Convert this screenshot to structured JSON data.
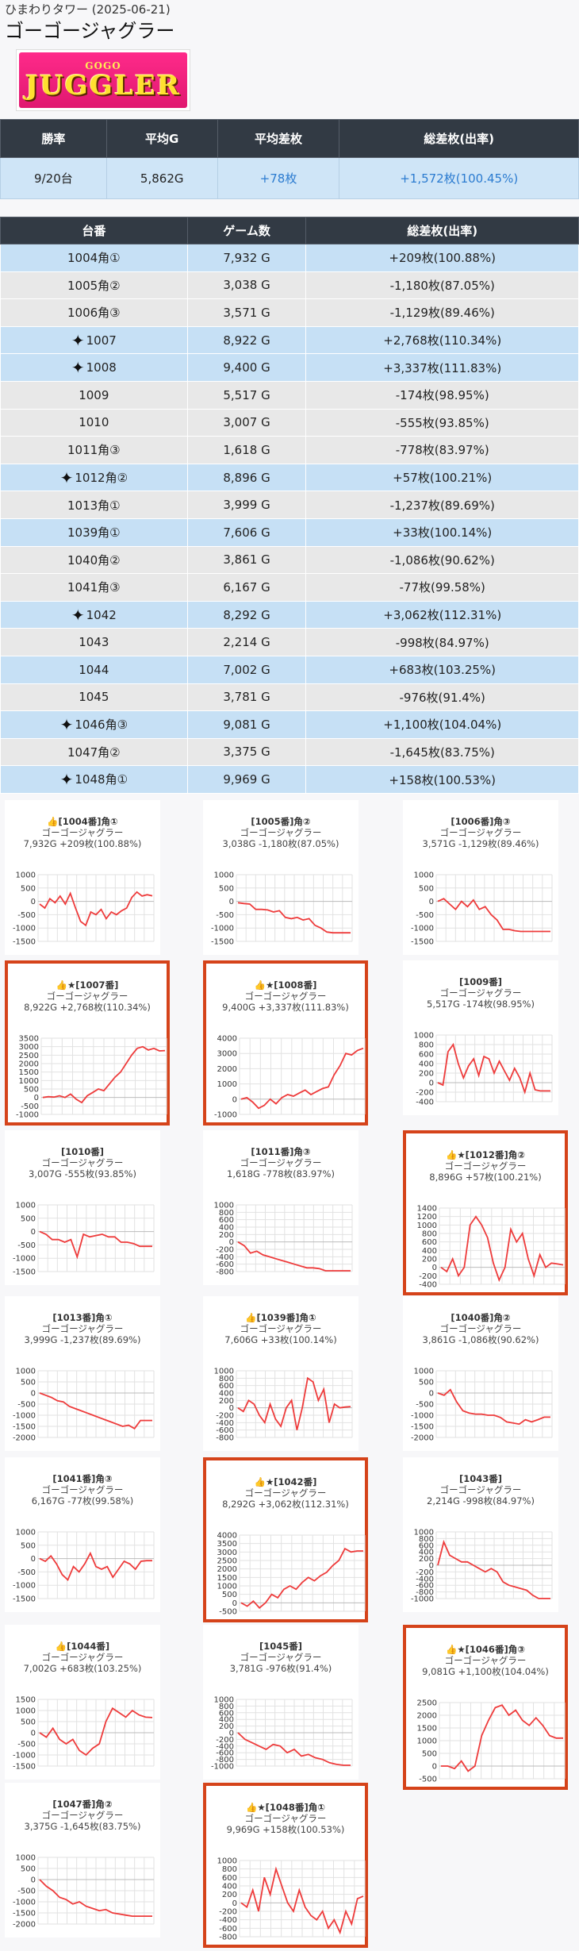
{
  "header": {
    "store": "ひまわりタワー",
    "date": "(2025-06-21)",
    "title": "ゴーゴージャグラー"
  },
  "logo": {
    "top_text": "GOGO",
    "main_text": "JUGGLER"
  },
  "summary": {
    "headers": [
      "勝率",
      "平均G",
      "平均差枚",
      "総差枚(出率)"
    ],
    "values": [
      "9/20台",
      "5,862G",
      "+78枚",
      "+1,572枚(100.45%)"
    ]
  },
  "table": {
    "headers": [
      "台番",
      "ゲーム数",
      "総差枚(出率)"
    ],
    "rows": [
      {
        "id": "1004角①",
        "games": "7,932 G",
        "diff": "+209枚(100.88%)",
        "hl": true,
        "star": false
      },
      {
        "id": "1005角②",
        "games": "3,038 G",
        "diff": "-1,180枚(87.05%)",
        "hl": false,
        "star": false
      },
      {
        "id": "1006角③",
        "games": "3,571 G",
        "diff": "-1,129枚(89.46%)",
        "hl": false,
        "star": false
      },
      {
        "id": "1007",
        "games": "8,922 G",
        "diff": "+2,768枚(110.34%)",
        "hl": true,
        "star": true
      },
      {
        "id": "1008",
        "games": "9,400 G",
        "diff": "+3,337枚(111.83%)",
        "hl": true,
        "star": true
      },
      {
        "id": "1009",
        "games": "5,517 G",
        "diff": "-174枚(98.95%)",
        "hl": false,
        "star": false
      },
      {
        "id": "1010",
        "games": "3,007 G",
        "diff": "-555枚(93.85%)",
        "hl": false,
        "star": false
      },
      {
        "id": "1011角③",
        "games": "1,618 G",
        "diff": "-778枚(83.97%)",
        "hl": false,
        "star": false
      },
      {
        "id": "1012角②",
        "games": "8,896 G",
        "diff": "+57枚(100.21%)",
        "hl": true,
        "star": true
      },
      {
        "id": "1013角①",
        "games": "3,999 G",
        "diff": "-1,237枚(89.69%)",
        "hl": false,
        "star": false
      },
      {
        "id": "1039角①",
        "games": "7,606 G",
        "diff": "+33枚(100.14%)",
        "hl": true,
        "star": false
      },
      {
        "id": "1040角②",
        "games": "3,861 G",
        "diff": "-1,086枚(90.62%)",
        "hl": false,
        "star": false
      },
      {
        "id": "1041角③",
        "games": "6,167 G",
        "diff": "-77枚(99.58%)",
        "hl": false,
        "star": false
      },
      {
        "id": "1042",
        "games": "8,292 G",
        "diff": "+3,062枚(112.31%)",
        "hl": true,
        "star": true
      },
      {
        "id": "1043",
        "games": "2,214 G",
        "diff": "-998枚(84.97%)",
        "hl": false,
        "star": false
      },
      {
        "id": "1044",
        "games": "7,002 G",
        "diff": "+683枚(103.25%)",
        "hl": true,
        "star": false
      },
      {
        "id": "1045",
        "games": "3,781 G",
        "diff": "-976枚(91.4%)",
        "hl": false,
        "star": false
      },
      {
        "id": "1046角③",
        "games": "9,081 G",
        "diff": "+1,100枚(104.04%)",
        "hl": true,
        "star": true
      },
      {
        "id": "1047角②",
        "games": "3,375 G",
        "diff": "-1,645枚(83.75%)",
        "hl": false,
        "star": false
      },
      {
        "id": "1048角①",
        "games": "9,969 G",
        "diff": "+158枚(100.53%)",
        "hl": true,
        "star": true
      }
    ]
  },
  "charts": [
    {
      "title": "👍[1004番]角①",
      "sub": "ゴーゴージャグラー",
      "stat": "7,932G +209枚(100.88%)",
      "boxed": false,
      "yticks": [
        1000,
        500,
        0,
        -500,
        -1000,
        -1500
      ],
      "ylim": [
        -1500,
        1000
      ],
      "values": [
        -100,
        -250,
        100,
        -50,
        200,
        -100,
        300,
        -250,
        -750,
        -900,
        -400,
        -500,
        -300,
        -650,
        -400,
        -500,
        -350,
        -250,
        150,
        350,
        200,
        250,
        209
      ]
    },
    {
      "title": "[1005番]角②",
      "sub": "ゴーゴージャグラー",
      "stat": "3,038G -1,180枚(87.05%)",
      "boxed": false,
      "yticks": [
        1000,
        500,
        0,
        -500,
        -1000,
        -1500
      ],
      "ylim": [
        -1500,
        1000
      ],
      "values": [
        -50,
        -80,
        -100,
        -300,
        -300,
        -320,
        -400,
        -350,
        -600,
        -650,
        -600,
        -700,
        -650,
        -900,
        -1000,
        -1150,
        -1180,
        -1180,
        -1180,
        -1180
      ]
    },
    {
      "title": "[1006番]角③",
      "sub": "ゴーゴージャグラー",
      "stat": "3,571G -1,129枚(89.46%)",
      "boxed": false,
      "yticks": [
        1000,
        500,
        0,
        -500,
        -1000,
        -1500
      ],
      "ylim": [
        -1500,
        1000
      ],
      "values": [
        0,
        100,
        -100,
        -300,
        0,
        -200,
        50,
        -300,
        -200,
        -500,
        -700,
        -1050,
        -1050,
        -1100,
        -1129,
        -1129,
        -1129,
        -1129,
        -1129,
        -1129
      ]
    },
    {
      "title": "👍★[1007番]",
      "sub": "ゴーゴージャグラー",
      "stat": "8,922G +2,768枚(110.34%)",
      "boxed": true,
      "yticks": [
        3500,
        3000,
        2500,
        2000,
        1500,
        1000,
        500,
        0,
        -500,
        -1000
      ],
      "ylim": [
        -1000,
        3500
      ],
      "values": [
        0,
        50,
        20,
        100,
        0,
        200,
        -100,
        -300,
        100,
        300,
        500,
        400,
        800,
        1200,
        1500,
        2000,
        2500,
        2900,
        3000,
        2800,
        2900,
        2750,
        2768
      ]
    },
    {
      "title": "👍★[1008番]",
      "sub": "ゴーゴージャグラー",
      "stat": "9,400G +3,337枚(111.83%)",
      "boxed": true,
      "yticks": [
        4000,
        3000,
        2000,
        1000,
        0,
        -1000
      ],
      "ylim": [
        -1000,
        4000
      ],
      "values": [
        0,
        100,
        -200,
        -600,
        -400,
        0,
        -300,
        100,
        300,
        200,
        400,
        600,
        300,
        500,
        700,
        800,
        1600,
        2200,
        3000,
        2900,
        3200,
        3337
      ]
    },
    {
      "title": "[1009番]",
      "sub": "ゴーゴージャグラー",
      "stat": "5,517G -174枚(98.95%)",
      "boxed": false,
      "yticks": [
        1000,
        800,
        600,
        400,
        200,
        0,
        -200,
        -400
      ],
      "ylim": [
        -400,
        1000
      ],
      "values": [
        0,
        -50,
        650,
        800,
        400,
        100,
        350,
        500,
        150,
        550,
        500,
        200,
        450,
        250,
        50,
        300,
        100,
        -200,
        200,
        -150,
        -174,
        -174,
        -174
      ]
    },
    {
      "title": "[1010番]",
      "sub": "ゴーゴージャグラー",
      "stat": "3,007G -555枚(93.85%)",
      "boxed": false,
      "yticks": [
        1000,
        500,
        0,
        -500,
        -1000,
        -1500
      ],
      "ylim": [
        -1500,
        1000
      ],
      "values": [
        0,
        -100,
        -300,
        -300,
        -400,
        -300,
        -950,
        -100,
        -200,
        -150,
        -100,
        -200,
        -200,
        -400,
        -400,
        -450,
        -555,
        -555,
        -555
      ]
    },
    {
      "title": "[1011番]角③",
      "sub": "ゴーゴージャグラー",
      "stat": "1,618G -778枚(83.97%)",
      "boxed": false,
      "yticks": [
        1000,
        800,
        600,
        400,
        200,
        0,
        -200,
        -400,
        -600,
        -800
      ],
      "ylim": [
        -800,
        1000
      ],
      "values": [
        0,
        -100,
        -300,
        -250,
        -350,
        -400,
        -450,
        -500,
        -550,
        -600,
        -650,
        -700,
        -700,
        -720,
        -778,
        -778,
        -778,
        -778,
        -778
      ]
    },
    {
      "title": "👍★[1012番]角②",
      "sub": "ゴーゴージャグラー",
      "stat": "8,896G +57枚(100.21%)",
      "boxed": true,
      "yticks": [
        1400,
        1200,
        1000,
        800,
        600,
        400,
        200,
        0,
        -200,
        -400
      ],
      "ylim": [
        -400,
        1400
      ],
      "values": [
        0,
        -100,
        200,
        -200,
        0,
        1000,
        1200,
        1000,
        700,
        100,
        -300,
        0,
        900,
        600,
        800,
        200,
        -200,
        300,
        0,
        100,
        80,
        57
      ]
    },
    {
      "title": "[1013番]角①",
      "sub": "ゴーゴージャグラー",
      "stat": "3,999G -1,237枚(89.69%)",
      "boxed": false,
      "yticks": [
        1000,
        500,
        0,
        -500,
        -1000,
        -1500,
        -2000
      ],
      "ylim": [
        -2000,
        1000
      ],
      "values": [
        0,
        -100,
        -200,
        -350,
        -400,
        -600,
        -700,
        -800,
        -900,
        -1000,
        -1100,
        -1200,
        -1300,
        -1400,
        -1500,
        -1450,
        -1600,
        -1237,
        -1237,
        -1237
      ]
    },
    {
      "title": "👍[1039番]角①",
      "sub": "ゴーゴージャグラー",
      "stat": "7,606G +33枚(100.14%)",
      "boxed": false,
      "yticks": [
        1000,
        800,
        600,
        400,
        200,
        0,
        -200,
        -400,
        -600,
        -800
      ],
      "ylim": [
        -800,
        1000
      ],
      "values": [
        0,
        -100,
        200,
        100,
        -200,
        -400,
        100,
        -300,
        -500,
        0,
        200,
        -600,
        0,
        800,
        700,
        200,
        500,
        -400,
        100,
        0,
        20,
        33
      ]
    },
    {
      "title": "[1040番]角②",
      "sub": "ゴーゴージャグラー",
      "stat": "3,861G -1,086枚(90.62%)",
      "boxed": false,
      "yticks": [
        1000,
        500,
        0,
        -500,
        -1000,
        -1500,
        -2000
      ],
      "ylim": [
        -2000,
        1000
      ],
      "values": [
        0,
        -100,
        150,
        -400,
        -800,
        -900,
        -950,
        -950,
        -1000,
        -1000,
        -1100,
        -1300,
        -1350,
        -1400,
        -1200,
        -1300,
        -1200,
        -1086,
        -1086
      ]
    },
    {
      "title": "[1041番]角③",
      "sub": "ゴーゴージャグラー",
      "stat": "6,167G -77枚(99.58%)",
      "boxed": false,
      "yticks": [
        1000,
        500,
        0,
        -500,
        -1000,
        -1500
      ],
      "ylim": [
        -1500,
        1000
      ],
      "values": [
        0,
        -100,
        100,
        -200,
        -600,
        -800,
        -300,
        -500,
        -200,
        200,
        -300,
        -400,
        -300,
        -700,
        -400,
        -100,
        -200,
        -400,
        -100,
        -77,
        -77
      ]
    },
    {
      "title": "👍★[1042番]",
      "sub": "ゴーゴージャグラー",
      "stat": "8,292G +3,062枚(112.31%)",
      "boxed": true,
      "yticks": [
        4000,
        3500,
        3000,
        2500,
        2000,
        1500,
        1000,
        500,
        0,
        -500
      ],
      "ylim": [
        -500,
        4000
      ],
      "values": [
        0,
        -200,
        100,
        -300,
        0,
        500,
        300,
        800,
        1000,
        800,
        1200,
        1500,
        1300,
        1600,
        1800,
        2200,
        2500,
        3200,
        3000,
        3062,
        3062
      ]
    },
    {
      "title": "[1043番]",
      "sub": "ゴーゴージャグラー",
      "stat": "2,214G -998枚(84.97%)",
      "boxed": false,
      "yticks": [
        1000,
        800,
        600,
        400,
        200,
        0,
        -200,
        -400,
        -600,
        -800,
        -1000
      ],
      "ylim": [
        -1000,
        1000
      ],
      "values": [
        0,
        700,
        300,
        200,
        100,
        100,
        0,
        -100,
        -200,
        -100,
        -200,
        -500,
        -600,
        -650,
        -700,
        -750,
        -900,
        -998,
        -998,
        -998
      ]
    },
    {
      "title": "👍[1044番]",
      "sub": "ゴーゴージャグラー",
      "stat": "7,002G +683枚(103.25%)",
      "boxed": false,
      "yticks": [
        1500,
        1000,
        500,
        0,
        -500,
        -1000,
        -1500
      ],
      "ylim": [
        -1500,
        1500
      ],
      "values": [
        0,
        -200,
        200,
        -300,
        -500,
        -300,
        -800,
        -1000,
        -700,
        -500,
        500,
        1100,
        900,
        700,
        1000,
        800,
        700,
        683
      ]
    },
    {
      "title": "[1045番]",
      "sub": "ゴーゴージャグラー",
      "stat": "3,781G -976枚(91.4%)",
      "boxed": false,
      "yticks": [
        1000,
        800,
        600,
        400,
        200,
        0,
        -200,
        -400,
        -600,
        -800,
        -1000
      ],
      "ylim": [
        -1000,
        1000
      ],
      "values": [
        0,
        -200,
        -300,
        -400,
        -500,
        -350,
        -400,
        -600,
        -500,
        -700,
        -650,
        -750,
        -800,
        -900,
        -950,
        -976,
        -976
      ]
    },
    {
      "title": "👍★[1046番]角③",
      "sub": "ゴーゴージャグラー",
      "stat": "9,081G +1,100枚(104.04%)",
      "boxed": true,
      "yticks": [
        2500,
        2000,
        1500,
        1000,
        500,
        0,
        -500
      ],
      "ylim": [
        -500,
        2500
      ],
      "values": [
        0,
        0,
        -100,
        200,
        -200,
        0,
        1200,
        1800,
        2300,
        2400,
        2000,
        2200,
        1800,
        1600,
        1900,
        1600,
        1200,
        1100,
        1100
      ]
    },
    {
      "title": "[1047番]角②",
      "sub": "ゴーゴージャグラー",
      "stat": "3,375G -1,645枚(83.75%)",
      "boxed": false,
      "yticks": [
        1000,
        500,
        0,
        -500,
        -1000,
        -1500,
        -2000
      ],
      "ylim": [
        -2000,
        1000
      ],
      "values": [
        0,
        -300,
        -500,
        -800,
        -900,
        -1100,
        -1000,
        -1200,
        -1300,
        -1400,
        -1350,
        -1500,
        -1550,
        -1600,
        -1645,
        -1645,
        -1645,
        -1645
      ]
    },
    {
      "title": "👍★[1048番]角①",
      "sub": "ゴーゴージャグラー",
      "stat": "9,969G +158枚(100.53%)",
      "boxed": true,
      "yticks": [
        1000,
        800,
        600,
        400,
        200,
        0,
        -200,
        -400,
        -600,
        -800
      ],
      "ylim": [
        -800,
        1000
      ],
      "values": [
        0,
        -100,
        300,
        -200,
        600,
        200,
        800,
        400,
        0,
        -200,
        300,
        -100,
        -300,
        -400,
        -200,
        -600,
        -400,
        -700,
        -200,
        -500,
        100,
        158
      ]
    }
  ]
}
